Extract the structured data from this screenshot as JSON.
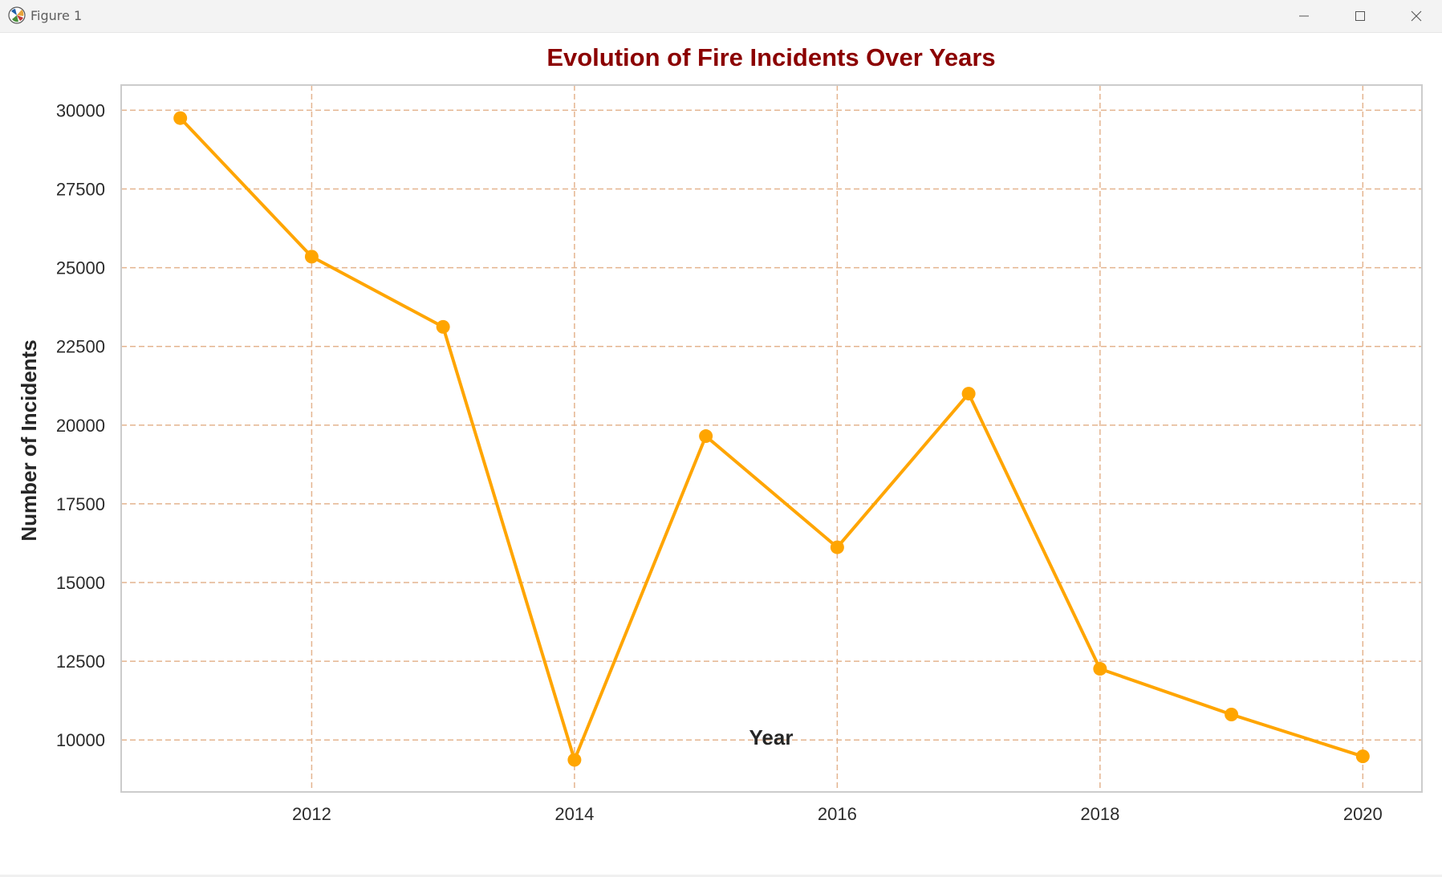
{
  "window": {
    "title": "Figure 1",
    "controls": {
      "minimize_icon": "minimize-icon",
      "maximize_icon": "maximize-icon",
      "close_icon": "close-icon"
    }
  },
  "colors": {
    "line": "#FFA500",
    "marker": "#FFA500",
    "grid": "#E4B48F",
    "title": "#8B0000",
    "axis_label": "#262626",
    "tick_label": "#2b2b2b",
    "spine": "#cccccc"
  },
  "chart_data": {
    "type": "line",
    "title": "Evolution of Fire Incidents Over Years",
    "xlabel": "Year",
    "ylabel": "Number of Incidents",
    "x": [
      2011,
      2012,
      2013,
      2014,
      2015,
      2016,
      2017,
      2018,
      2019,
      2020
    ],
    "series": [
      {
        "values": [
          29750,
          25350,
          23120,
          9370,
          19650,
          16120,
          21000,
          12260,
          10810,
          9480
        ]
      }
    ],
    "xlim": [
      2010.55,
      2020.45
    ],
    "ylim": [
      8350,
      30800
    ],
    "xticks": [
      2012,
      2014,
      2016,
      2018,
      2020
    ],
    "yticks": [
      10000,
      12500,
      15000,
      17500,
      20000,
      22500,
      25000,
      27500,
      30000
    ],
    "grid": true,
    "grid_style": "dashed",
    "marker": "circle",
    "legend": "none"
  }
}
